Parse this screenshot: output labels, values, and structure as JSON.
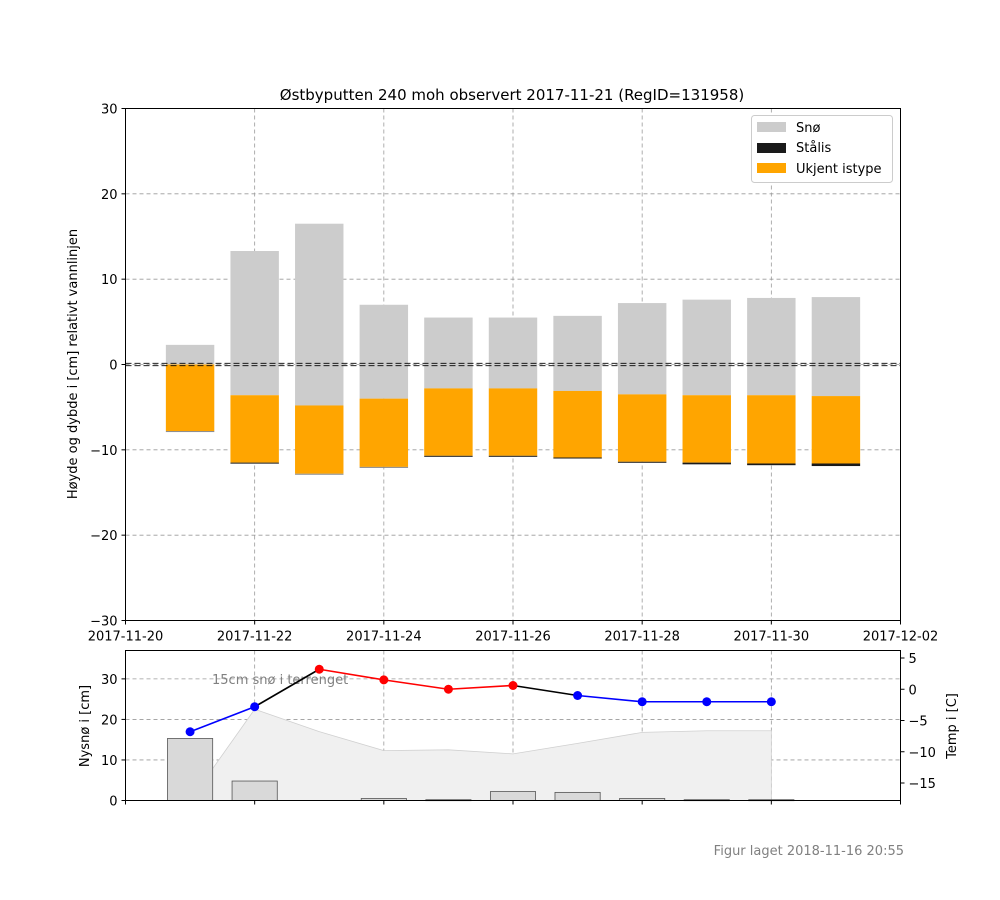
{
  "chart_data": [
    {
      "type": "bar",
      "title": "Østbyputten 240 moh observert 2017-11-21 (RegID=131958)",
      "ylabel": "Høyde og dybde i [cm] relativt vannlinjen",
      "xlabel": "",
      "ylim": [
        -30,
        30
      ],
      "yticks": [
        30,
        20,
        10,
        0,
        -10,
        -20,
        -30
      ],
      "ytick_labels": [
        "30",
        "20",
        "10",
        "0",
        "−10",
        "−20",
        "−30"
      ],
      "xlim": [
        "2017-11-20",
        "2017-12-02"
      ],
      "xtick_labels": [
        "2017-11-20",
        "2017-11-22",
        "2017-11-24",
        "2017-11-26",
        "2017-11-28",
        "2017-11-30",
        "2017-12-02"
      ],
      "grid": true,
      "legend_position": "top-right",
      "legend": [
        {
          "name": "Snø",
          "color": "#cccccc"
        },
        {
          "name": "Stålis",
          "color": "#1a1a1a"
        },
        {
          "name": "Ukjent istype",
          "color": "#ffa500"
        }
      ],
      "dates": [
        "2017-11-21",
        "2017-11-22",
        "2017-11-23",
        "2017-11-24",
        "2017-11-25",
        "2017-11-26",
        "2017-11-27",
        "2017-11-28",
        "2017-11-29",
        "2017-11-30",
        "2017-12-01"
      ],
      "snow_top": [
        2.3,
        13.3,
        16.5,
        7.0,
        5.5,
        5.5,
        5.7,
        7.2,
        7.6,
        7.8,
        7.9
      ],
      "ice_top": [
        0.0,
        -3.6,
        -4.8,
        -4.0,
        -2.8,
        -2.8,
        -3.1,
        -3.5,
        -3.6,
        -3.6,
        -3.7
      ],
      "ukjent_bottom": [
        -7.8,
        -11.5,
        -12.8,
        -12.0,
        -10.7,
        -10.7,
        -10.9,
        -11.4,
        -11.5,
        -11.6,
        -11.6
      ],
      "stalis_bottom": [
        -7.8,
        -11.6,
        -12.8,
        -12.0,
        -10.8,
        -10.8,
        -11.0,
        -11.5,
        -11.7,
        -11.8,
        -11.9
      ],
      "waterline": 0
    },
    {
      "type": "bar",
      "ylabel": "Nysnø i [cm]",
      "ylabel_right": "Temp i [C]",
      "ylim": [
        0,
        37
      ],
      "yticks": [
        0,
        10,
        20,
        30
      ],
      "ytick_labels": [
        "0",
        "10",
        "20",
        "30"
      ],
      "ylim_right": [
        -17.8,
        6.2
      ],
      "yticks_right": [
        5,
        0,
        -5,
        -10,
        -15
      ],
      "ytick_labels_right": [
        "5",
        "0",
        "−5",
        "−10",
        "−15"
      ],
      "xlim": [
        "2017-11-20",
        "2017-12-02"
      ],
      "grid": true,
      "annotation": "15cm snø i terrenget",
      "dates": [
        "2017-11-21",
        "2017-11-22",
        "2017-11-23",
        "2017-11-24",
        "2017-11-25",
        "2017-11-26",
        "2017-11-27",
        "2017-11-28",
        "2017-11-29",
        "2017-11-30",
        "2017-12-01"
      ],
      "new_snow_cm": [
        15.3,
        4.8,
        0,
        0.5,
        0.2,
        2.2,
        2.0,
        0.5,
        0.2,
        0.2,
        0
      ],
      "snow_depth_cm": [
        0,
        22.5,
        17,
        12.3,
        12.5,
        11.5,
        14.1,
        16.8,
        17.2,
        17.2,
        null
      ],
      "temp_dates": [
        "2017-11-21",
        "2017-11-22",
        "2017-11-23",
        "2017-11-24",
        "2017-11-25",
        "2017-11-26",
        "2017-11-27",
        "2017-11-28",
        "2017-11-29",
        "2017-11-30"
      ],
      "temp_c": [
        -6.8,
        -2.8,
        3.2,
        1.5,
        0.0,
        0.6,
        -1.0,
        -2.0,
        -2.0,
        -2.0
      ],
      "temp_point_colors": [
        "#0000ff",
        "#0000ff",
        "#ff0000",
        "#ff0000",
        "#ff0000",
        "#ff0000",
        "#0000ff",
        "#0000ff",
        "#0000ff",
        "#0000ff"
      ],
      "temp_segment_colors": [
        "#0000ff",
        "#000000",
        "#ff0000",
        "#ff0000",
        "#ff0000",
        "#000000",
        "#0000ff",
        "#0000ff",
        "#0000ff"
      ]
    }
  ],
  "footer": "Figur laget 2018-11-16 20:55"
}
